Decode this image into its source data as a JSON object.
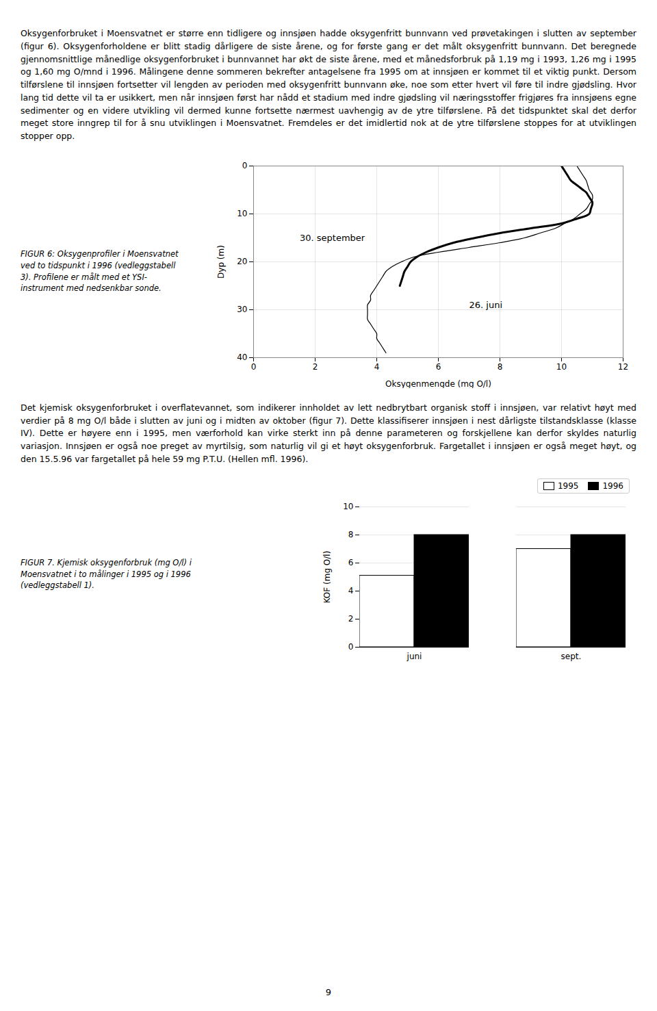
{
  "page_text": {
    "paragraphs": [
      "Oksygenforbruket i Moensvatnet er større enn tidligere og innsjøen hadde oksygenfritt bunnvann ved prøvetakingen i slutten av september (figur 6). Oksygenforholdene er blitt stadig dårligere de siste årene, og for første gang er det målt oksygenfritt bunnvann. Det beregnede gjennomsnittlige månedlige oksygenforbruket i bunnvannet har økt de siste årene, med et månedsforbruk på 1,19 mg i 1993, 1,26 mg i 1995 og 1,60 mg O/mnd i 1996. Målingene denne sommeren bekrefter antagelsene fra 1995 om at innsjøen er kommet til et viktig punkt. Dersom tilførslene til innsjøen fortsetter vil lengden av perioden med oksygenfritt bunnvann øke, noe som etter hvert vil føre til indre gjødsling. Hvor lang tid dette vil ta er usikkert, men når innsjøen først har nådd et stadium med indre gjødsling vil næringsstoffer frigjøres fra innsjøens egne sedimenter og en videre utvikling vil dermed kunne fortsette nærmest uavhengig av de ytre tilførslene. På det tidspunktet skal det derfor meget store inngrep til for å snu utviklingen i Moensvatnet. Fremdeles er det imidlertid nok at de ytre tilførslene stoppes for at utviklingen stopper opp.",
      "Det kjemisk oksygenforbruket i overflatevannet, som indikerer innholdet av lett nedbrytbart organisk stoff i innsjøen, var relativt høyt med verdier på 8 mg O/l både i slutten av juni og i midten av oktober (figur 7). Dette klassifiserer innsjøen i nest dårligste tilstandsklasse (klasse IV). Dette er høyere enn i 1995, men værforhold kan virke sterkt inn på denne parameteren og forskjellene kan derfor skyldes naturlig variasjon. Innsjøen er også noe preget av myrtilsig, som naturlig vil gi et høyt oksygenforbruk. Fargetallet i innsjøen er også meget høyt, og den 15.5.96 var fargetallet på hele 59 mg P.T.U. (Hellen mfl. 1996)."
    ],
    "page_number": "9"
  },
  "chart_data": [
    {
      "type": "line",
      "title": "FIGUR 6: Oksygenprofiler i Moensvatnet\nved to tidspunkt i 1996 (vedleggstabell\n3). Profilene er målt med et YSI-\ninstrument med nedsenkbar sonde.",
      "xlabel": "Oksygenmengde (mg O/l)",
      "ylabel": "Dyp (m)",
      "xlim": [
        0,
        12
      ],
      "ylim": [
        40,
        0
      ],
      "xticks": [
        0,
        2,
        4,
        6,
        8,
        10,
        12
      ],
      "yticks": [
        0,
        10,
        20,
        30,
        40
      ],
      "grid": true,
      "series": [
        {
          "color": "#000000",
          "x": [
            10.5,
            10.6,
            10.7,
            10.8,
            10.85,
            10.9,
            10.95,
            11.0,
            11.0,
            10.9,
            10.8,
            10.6,
            10.4,
            10.1,
            9.8,
            9.3,
            8.8,
            8.0,
            7.0,
            6.0,
            5.2,
            4.8,
            4.5,
            4.3,
            4.2,
            4.1,
            4.0,
            3.9,
            3.8,
            3.8,
            3.7,
            3.7,
            3.7,
            3.7,
            3.8,
            3.9,
            4.0,
            4.0,
            4.1,
            4.2,
            4.3
          ],
          "y": [
            0,
            1,
            2,
            3,
            4,
            5,
            5.5,
            6,
            7,
            8,
            9,
            10,
            11,
            12,
            13,
            14,
            15,
            16,
            17,
            18,
            19,
            20,
            21,
            22,
            23,
            24,
            25,
            26,
            27,
            28,
            29,
            30,
            31,
            32,
            33,
            34,
            35,
            36,
            37,
            38,
            39
          ]
        },
        {
          "color": "#000000",
          "x": [
            10.0,
            10.1,
            10.2,
            10.3,
            10.5,
            10.6,
            10.7,
            10.8,
            10.85,
            10.9,
            10.95,
            11.0,
            11.0,
            10.95,
            10.9,
            10.5,
            10.0,
            9.0,
            8.0,
            7.2,
            6.5,
            6.0,
            5.6,
            5.3,
            5.1,
            5.0,
            4.9,
            4.85,
            4.8,
            4.75
          ],
          "y": [
            0,
            1,
            2,
            3,
            4,
            4.5,
            5,
            5.5,
            6,
            6.5,
            7,
            7.5,
            8,
            9,
            10,
            11,
            12,
            13,
            14,
            15,
            16,
            17,
            18,
            19,
            20,
            21,
            22,
            23,
            24,
            25
          ]
        }
      ],
      "annotations": [
        {
          "text": "30. september",
          "x": 1.5,
          "y": 15
        },
        {
          "text": "26. juni",
          "x": 7.0,
          "y": 29
        }
      ]
    },
    {
      "type": "bar",
      "title": "FIGUR 7. Kjemisk oksygenforbruk (mg O/l) i\nMoensvatnet i to målinger i 1995 og i 1996\n(vedleggstabell 1).",
      "categories": [
        "juni",
        "sept."
      ],
      "series": [
        {
          "name": "1995",
          "color": "#ffffff",
          "values": [
            5.1,
            7.0
          ]
        },
        {
          "name": "1996",
          "color": "#000000",
          "values": [
            8.0,
            8.0
          ]
        }
      ],
      "ylabel": "KOF (mg O/l)",
      "ylim": [
        0,
        10
      ],
      "yticks": [
        0,
        2,
        4,
        6,
        8,
        10
      ],
      "grid": "y",
      "legend": "upper right"
    }
  ]
}
